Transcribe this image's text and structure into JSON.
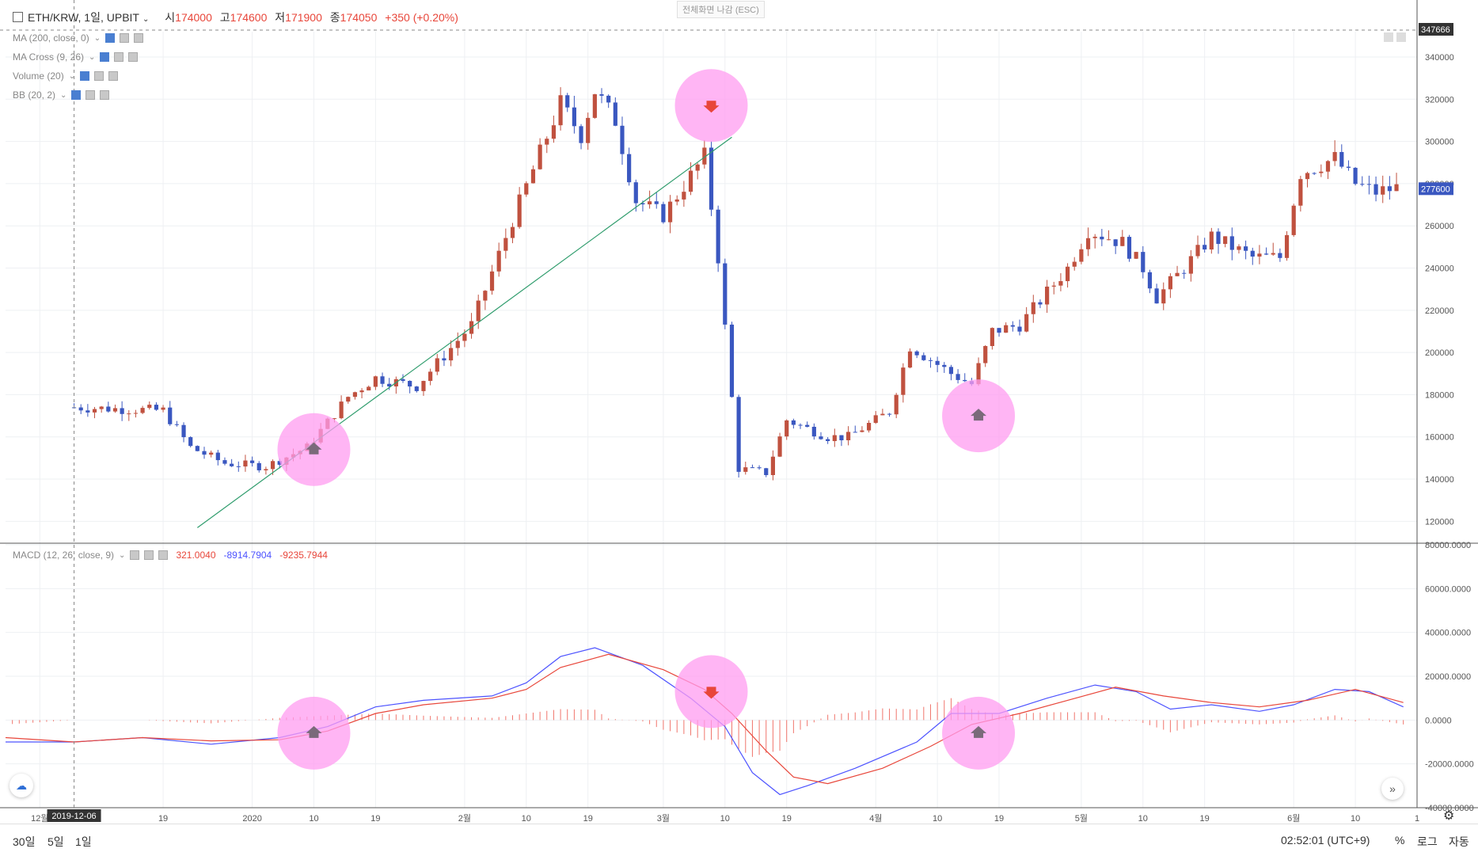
{
  "header": {
    "collapse_icon": "minus-square-icon",
    "symbol": "ETH/KRW, 1일, UPBIT",
    "open_label": "시",
    "open_value": "174000",
    "high_label": "고",
    "high_value": "174600",
    "low_label": "저",
    "low_value": "171900",
    "close_label": "종",
    "close_value": "174050",
    "change": "+350 (+0.20%)"
  },
  "fullscreen_exit": "전체화면 나감 (ESC)",
  "indicators": [
    {
      "label": "MA (200, close, 0)"
    },
    {
      "label": "MA Cross (9, 26)"
    },
    {
      "label": "Volume (20)"
    },
    {
      "label": "BB (20, 2)"
    }
  ],
  "macd": {
    "label": "MACD (12, 26, close, 9)",
    "hist_value": "321.0040",
    "macd_value": "-8914.7904",
    "signal_value": "-9235.7944"
  },
  "chart_data": [
    {
      "type": "candlestick",
      "title": "ETH/KRW, 1일, UPBIT",
      "y_ticks": [
        120000,
        140000,
        160000,
        180000,
        200000,
        220000,
        240000,
        260000,
        280000,
        300000,
        320000,
        340000
      ],
      "ylim": [
        110000,
        352000
      ],
      "crosshair_price": "347666",
      "last_price": "277600",
      "x_ticks": [
        "12월",
        "19",
        "2020",
        "10",
        "19",
        "2월",
        "10",
        "19",
        "3월",
        "10",
        "19",
        "4월",
        "10",
        "19",
        "5월",
        "10",
        "19",
        "6월",
        "10",
        "1"
      ],
      "crosshair_date": "2019-12-06",
      "anchors": [
        {
          "date": "2019-12-06",
          "price": 174000
        },
        {
          "date": "2019-12-19",
          "price": 172500
        },
        {
          "date": "2019-12-23",
          "price": 155000
        },
        {
          "date": "2019-12-28",
          "price": 147500
        },
        {
          "date": "2020-01-03",
          "price": 146000
        },
        {
          "date": "2020-01-09",
          "price": 155000
        },
        {
          "date": "2020-01-15",
          "price": 179000
        },
        {
          "date": "2020-01-19",
          "price": 188000
        },
        {
          "date": "2020-01-25",
          "price": 184000
        },
        {
          "date": "2020-02-02",
          "price": 213000
        },
        {
          "date": "2020-02-08",
          "price": 263000
        },
        {
          "date": "2020-02-15",
          "price": 318000
        },
        {
          "date": "2020-02-18",
          "price": 303000
        },
        {
          "date": "2020-02-20",
          "price": 324000
        },
        {
          "date": "2020-02-23",
          "price": 310000
        },
        {
          "date": "2020-02-26",
          "price": 272000
        },
        {
          "date": "2020-03-01",
          "price": 265000
        },
        {
          "date": "2020-03-07",
          "price": 293000
        },
        {
          "date": "2020-03-09",
          "price": 245000
        },
        {
          "date": "2020-03-12",
          "price": 145000
        },
        {
          "date": "2020-03-16",
          "price": 143000
        },
        {
          "date": "2020-03-19",
          "price": 168000
        },
        {
          "date": "2020-03-25",
          "price": 160000
        },
        {
          "date": "2020-03-28",
          "price": 160000
        },
        {
          "date": "2020-04-03",
          "price": 172000
        },
        {
          "date": "2020-04-06",
          "price": 203000
        },
        {
          "date": "2020-04-12",
          "price": 190000
        },
        {
          "date": "2020-04-15",
          "price": 185000
        },
        {
          "date": "2020-04-18",
          "price": 210000
        },
        {
          "date": "2020-04-22",
          "price": 213000
        },
        {
          "date": "2020-04-29",
          "price": 240000
        },
        {
          "date": "2020-05-02",
          "price": 258000
        },
        {
          "date": "2020-05-07",
          "price": 252000
        },
        {
          "date": "2020-05-10",
          "price": 240000
        },
        {
          "date": "2020-05-12",
          "price": 226000
        },
        {
          "date": "2020-05-16",
          "price": 240000
        },
        {
          "date": "2020-05-20",
          "price": 255000
        },
        {
          "date": "2020-05-26",
          "price": 245000
        },
        {
          "date": "2020-05-30",
          "price": 245000
        },
        {
          "date": "2020-06-02",
          "price": 285000
        },
        {
          "date": "2020-06-07",
          "price": 292000
        },
        {
          "date": "2020-06-10",
          "price": 280000
        },
        {
          "date": "2020-06-13",
          "price": 276000
        },
        {
          "date": "2020-06-16",
          "price": 278000
        }
      ],
      "trendline": [
        {
          "date": "2019-12-24",
          "price": 117000
        },
        {
          "date": "2020-03-11",
          "price": 302000
        }
      ],
      "buy_signals": [
        {
          "date": "2020-01-10",
          "price": 154000
        },
        {
          "date": "2020-04-16",
          "price": 170000
        }
      ],
      "sell_signals": [
        {
          "date": "2020-03-08",
          "price": 317000
        }
      ]
    },
    {
      "type": "line",
      "title": "MACD (12, 26, close, 9)",
      "y_ticks": [
        -40000,
        -20000,
        0,
        20000,
        40000,
        60000,
        80000
      ],
      "ylim": [
        -40000,
        80000
      ],
      "histogram_color": "#f0756c",
      "series": [
        {
          "name": "MACD",
          "color": "#4d53ff",
          "points": [
            [
              "2019-11-26",
              -10000
            ],
            [
              "2019-12-06",
              -10000
            ],
            [
              "2019-12-16",
              -8000
            ],
            [
              "2019-12-26",
              -11000
            ],
            [
              "2020-01-05",
              -8000
            ],
            [
              "2020-01-12",
              -3000
            ],
            [
              "2020-01-19",
              6000
            ],
            [
              "2020-01-26",
              9000
            ],
            [
              "2020-02-05",
              11000
            ],
            [
              "2020-02-10",
              17000
            ],
            [
              "2020-02-15",
              29000
            ],
            [
              "2020-02-20",
              33000
            ],
            [
              "2020-02-27",
              25000
            ],
            [
              "2020-03-05",
              10000
            ],
            [
              "2020-03-10",
              -3000
            ],
            [
              "2020-03-14",
              -24000
            ],
            [
              "2020-03-18",
              -34000
            ],
            [
              "2020-03-22",
              -30000
            ],
            [
              "2020-03-29",
              -22000
            ],
            [
              "2020-04-07",
              -10000
            ],
            [
              "2020-04-12",
              3000
            ],
            [
              "2020-04-19",
              3000
            ],
            [
              "2020-04-26",
              10000
            ],
            [
              "2020-05-03",
              16000
            ],
            [
              "2020-05-09",
              13000
            ],
            [
              "2020-05-14",
              5000
            ],
            [
              "2020-05-20",
              7000
            ],
            [
              "2020-05-27",
              4000
            ],
            [
              "2020-06-01",
              7000
            ],
            [
              "2020-06-07",
              14000
            ],
            [
              "2020-06-12",
              13000
            ],
            [
              "2020-06-17",
              6000
            ]
          ]
        },
        {
          "name": "Signal",
          "color": "#e8463a",
          "points": [
            [
              "2019-11-26",
              -8000
            ],
            [
              "2019-12-06",
              -10000
            ],
            [
              "2019-12-16",
              -8000
            ],
            [
              "2019-12-26",
              -9500
            ],
            [
              "2020-01-05",
              -9000
            ],
            [
              "2020-01-12",
              -5000
            ],
            [
              "2020-01-19",
              3000
            ],
            [
              "2020-01-26",
              7000
            ],
            [
              "2020-02-05",
              10000
            ],
            [
              "2020-02-10",
              14000
            ],
            [
              "2020-02-15",
              24000
            ],
            [
              "2020-02-22",
              30000
            ],
            [
              "2020-03-01",
              23000
            ],
            [
              "2020-03-07",
              14000
            ],
            [
              "2020-03-11",
              3000
            ],
            [
              "2020-03-16",
              -14000
            ],
            [
              "2020-03-20",
              -26000
            ],
            [
              "2020-03-25",
              -29000
            ],
            [
              "2020-04-02",
              -22000
            ],
            [
              "2020-04-09",
              -12000
            ],
            [
              "2020-04-15",
              -2000
            ],
            [
              "2020-04-22",
              3000
            ],
            [
              "2020-04-29",
              9000
            ],
            [
              "2020-05-06",
              15000
            ],
            [
              "2020-05-13",
              11000
            ],
            [
              "2020-05-20",
              8000
            ],
            [
              "2020-05-27",
              6000
            ],
            [
              "2020-06-03",
              9000
            ],
            [
              "2020-06-10",
              14000
            ],
            [
              "2020-06-17",
              8000
            ]
          ]
        }
      ],
      "buy_signals": [
        {
          "date": "2020-01-10",
          "value": -6000
        },
        {
          "date": "2020-04-16",
          "value": -6000
        }
      ],
      "sell_signals": [
        {
          "date": "2020-03-08",
          "value": 13000
        }
      ]
    }
  ],
  "bottom_bar": {
    "range_30d": "30일",
    "range_5d": "5일",
    "range_1d": "1일",
    "clock": "02:52:01 (UTC+9)",
    "percent": "%",
    "log": "로그",
    "auto": "자동"
  },
  "colors": {
    "up": "#c0513f",
    "down": "#3a57c0",
    "signal_circle": "#ff9cf0",
    "trendline": "#2e9c6c",
    "arrow": "#7a6a7a"
  }
}
